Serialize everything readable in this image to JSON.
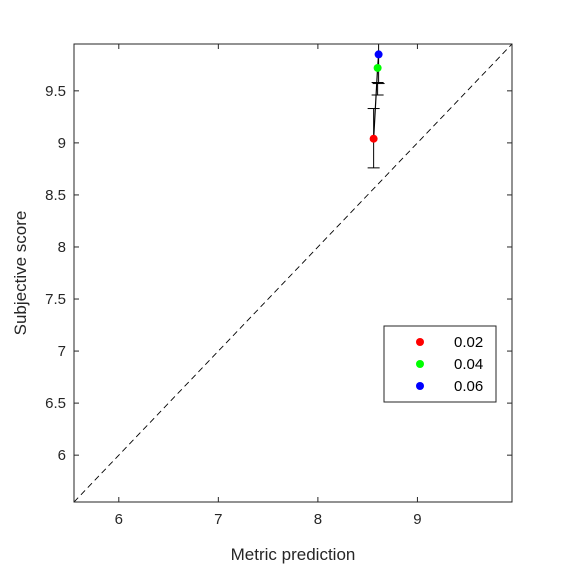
{
  "chart_data": {
    "type": "scatter",
    "xlabel": "Metric prediction",
    "ylabel": "Subjective score",
    "xlim": [
      5.55,
      9.95
    ],
    "ylim": [
      5.55,
      9.95
    ],
    "x_ticks": [
      6,
      7,
      8,
      9
    ],
    "y_ticks": [
      6,
      6.5,
      7,
      7.5,
      8,
      8.5,
      9,
      9.5
    ],
    "x_tick_labels": [
      "6",
      "7",
      "8",
      "9"
    ],
    "y_tick_labels": [
      "6",
      "6.5",
      "7",
      "7.5",
      "8",
      "8.5",
      "9",
      "9.5"
    ],
    "grid": false,
    "reference_line": {
      "style": "dashed",
      "from": [
        5.55,
        5.55
      ],
      "to": [
        9.95,
        9.95
      ]
    },
    "legend_position": "lower-right",
    "series": [
      {
        "name": "0.02",
        "color": "#ff0000",
        "x": 8.56,
        "y": 9.04,
        "yerr_low": 8.76,
        "yerr_high": 9.33
      },
      {
        "name": "0.04",
        "color": "#00ff00",
        "x": 8.6,
        "y": 9.72,
        "yerr_low": 9.46,
        "yerr_high": 9.58
      },
      {
        "name": "0.06",
        "color": "#0000ff",
        "x": 8.61,
        "y": 9.85,
        "yerr_low": 9.57,
        "yerr_high": 9.95
      }
    ],
    "connecting_line": {
      "color": "#000000",
      "x": [
        8.56,
        8.6,
        8.61
      ],
      "y": [
        9.04,
        9.72,
        9.85
      ]
    }
  }
}
